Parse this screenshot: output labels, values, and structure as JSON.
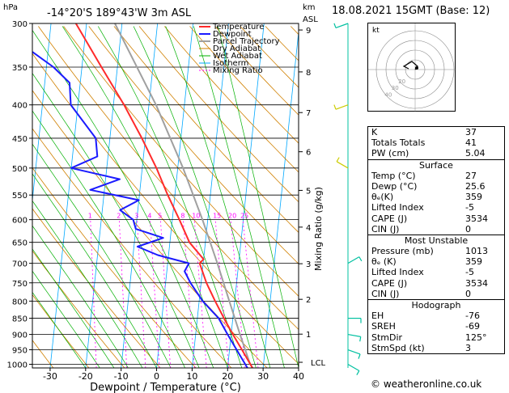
{
  "header": {
    "unit_hpa": "hPa",
    "location": "-14°20'S 189°43'W 3m ASL",
    "km_label": "km",
    "asl_label": "ASL",
    "date": "18.08.2021 15GMT (Base: 12)"
  },
  "axes": {
    "xlabel": "Dewpoint / Temperature (°C)",
    "right_label": "Mixing Ratio (g/kg)",
    "lcl_label": "LCL"
  },
  "legend": [
    "Temperature",
    "Dewpoint",
    "Parcel Trajectory",
    "Dry Adiabat",
    "Wet Adiabat",
    "Isotherm",
    "Mixing Ratio"
  ],
  "colors": {
    "temperature": "#ff2a2a",
    "dewpoint": "#1a1aff",
    "parcel": "#a0a0a0",
    "dry_adiabat": "#d08000",
    "wet_adiabat": "#00b000",
    "isotherm": "#00a8ff",
    "mixing_ratio": "#ff00ff",
    "wind": "#00c0a0"
  },
  "hodograph": {
    "label": "kt",
    "ring_labels": [
      "20",
      "30",
      "40"
    ]
  },
  "copyright": "© weatheronline.co.uk",
  "indices": [
    {
      "k": "K",
      "v": "37"
    },
    {
      "k": "Totals Totals",
      "v": "41"
    },
    {
      "k": "PW (cm)",
      "v": "5.04"
    }
  ],
  "surface": {
    "title": "Surface",
    "rows": [
      {
        "k": "Temp (°C)",
        "v": "27"
      },
      {
        "k": "Dewp (°C)",
        "v": "25.6"
      },
      {
        "k": "θₑ(K)",
        "v": "359"
      },
      {
        "k": "Lifted Index",
        "v": "-5"
      },
      {
        "k": "CAPE (J)",
        "v": "3534"
      },
      {
        "k": "CIN (J)",
        "v": "0"
      }
    ]
  },
  "most_unstable": {
    "title": "Most Unstable",
    "rows": [
      {
        "k": "Pressure (mb)",
        "v": "1013"
      },
      {
        "k": "θₑ (K)",
        "v": "359"
      },
      {
        "k": "Lifted Index",
        "v": "-5"
      },
      {
        "k": "CAPE (J)",
        "v": "3534"
      },
      {
        "k": "CIN (J)",
        "v": "0"
      }
    ]
  },
  "hodograph_table": {
    "title": "Hodograph",
    "rows": [
      {
        "k": "EH",
        "v": "-76"
      },
      {
        "k": "SREH",
        "v": "-69"
      },
      {
        "k": "StmDir",
        "v": "125°"
      },
      {
        "k": "StmSpd (kt)",
        "v": "3"
      }
    ]
  },
  "chart_data": {
    "type": "line",
    "title": "-14°20'S 189°43'W 3m ASL",
    "xlabel": "Dewpoint / Temperature (°C)",
    "ylabel": "hPa",
    "pressure_levels": [
      300,
      350,
      400,
      450,
      500,
      550,
      600,
      650,
      700,
      750,
      800,
      850,
      900,
      950,
      1000
    ],
    "temperature_ticks": [
      -30,
      -20,
      -10,
      0,
      10,
      20,
      30,
      40
    ],
    "km_ticks": [
      {
        "label": "9",
        "p": 307
      },
      {
        "label": "8",
        "p": 356
      },
      {
        "label": "7",
        "p": 411
      },
      {
        "label": "6",
        "p": 472
      },
      {
        "label": "5",
        "p": 541
      },
      {
        "label": "4",
        "p": 616
      },
      {
        "label": "3",
        "p": 701
      },
      {
        "label": "2",
        "p": 795
      },
      {
        "label": "1",
        "p": 899
      },
      {
        "label": "LCL",
        "p": 993
      }
    ],
    "mixing_ratio_labels": [
      "1",
      "2",
      "3",
      "4",
      "5",
      "8",
      "10",
      "15",
      "20",
      "25"
    ],
    "mixing_ratio_values": [
      1,
      2,
      3,
      4,
      5,
      8,
      10,
      15,
      20,
      25
    ],
    "xlim": [
      -35,
      40
    ],
    "ylim": [
      1013,
      300
    ],
    "series": [
      {
        "name": "Temperature",
        "points": [
          {
            "p": 1013,
            "t": 27
          },
          {
            "p": 950,
            "t": 23.5
          },
          {
            "p": 900,
            "t": 20.5
          },
          {
            "p": 850,
            "t": 17.5
          },
          {
            "p": 800,
            "t": 14.5
          },
          {
            "p": 750,
            "t": 11.5
          },
          {
            "p": 700,
            "t": 9
          },
          {
            "p": 690,
            "t": 10
          },
          {
            "p": 650,
            "t": 5.5
          },
          {
            "p": 600,
            "t": 2
          },
          {
            "p": 550,
            "t": -2
          },
          {
            "p": 500,
            "t": -6
          },
          {
            "p": 450,
            "t": -11
          },
          {
            "p": 400,
            "t": -17
          },
          {
            "p": 350,
            "t": -24.5
          },
          {
            "p": 300,
            "t": -33
          }
        ]
      },
      {
        "name": "Dewpoint",
        "points": [
          {
            "p": 1013,
            "t": 25.6
          },
          {
            "p": 950,
            "t": 22
          },
          {
            "p": 900,
            "t": 19
          },
          {
            "p": 850,
            "t": 16
          },
          {
            "p": 800,
            "t": 11
          },
          {
            "p": 750,
            "t": 7
          },
          {
            "p": 720,
            "t": 5
          },
          {
            "p": 700,
            "t": 6
          },
          {
            "p": 680,
            "t": -3
          },
          {
            "p": 660,
            "t": -9
          },
          {
            "p": 640,
            "t": -2
          },
          {
            "p": 620,
            "t": -10
          },
          {
            "p": 600,
            "t": -11
          },
          {
            "p": 580,
            "t": -15
          },
          {
            "p": 560,
            "t": -10
          },
          {
            "p": 540,
            "t": -24
          },
          {
            "p": 520,
            "t": -16
          },
          {
            "p": 500,
            "t": -30
          },
          {
            "p": 480,
            "t": -23
          },
          {
            "p": 450,
            "t": -24
          },
          {
            "p": 400,
            "t": -32
          },
          {
            "p": 370,
            "t": -33
          },
          {
            "p": 350,
            "t": -38
          },
          {
            "p": 330,
            "t": -45
          },
          {
            "p": 310,
            "t": -62
          },
          {
            "p": 300,
            "t": -64
          }
        ]
      },
      {
        "name": "Parcel Trajectory",
        "points": [
          {
            "p": 1013,
            "t": 27
          },
          {
            "p": 993,
            "t": 26
          },
          {
            "p": 900,
            "t": 22.5
          },
          {
            "p": 800,
            "t": 18.5
          },
          {
            "p": 700,
            "t": 14
          },
          {
            "p": 600,
            "t": 8.5
          },
          {
            "p": 500,
            "t": 1.5
          },
          {
            "p": 400,
            "t": -8
          },
          {
            "p": 300,
            "t": -22
          }
        ]
      }
    ],
    "wind_barbs": [
      {
        "p": 1000,
        "dir": 120,
        "spd": 5
      },
      {
        "p": 950,
        "dir": 110,
        "spd": 5
      },
      {
        "p": 900,
        "dir": 100,
        "spd": 5
      },
      {
        "p": 850,
        "dir": 90,
        "spd": 10
      },
      {
        "p": 700,
        "dir": 60,
        "spd": 5
      },
      {
        "p": 500,
        "dir": 300,
        "spd": 10
      },
      {
        "p": 400,
        "dir": 250,
        "spd": 10
      },
      {
        "p": 300,
        "dir": 250,
        "spd": 10
      }
    ]
  }
}
